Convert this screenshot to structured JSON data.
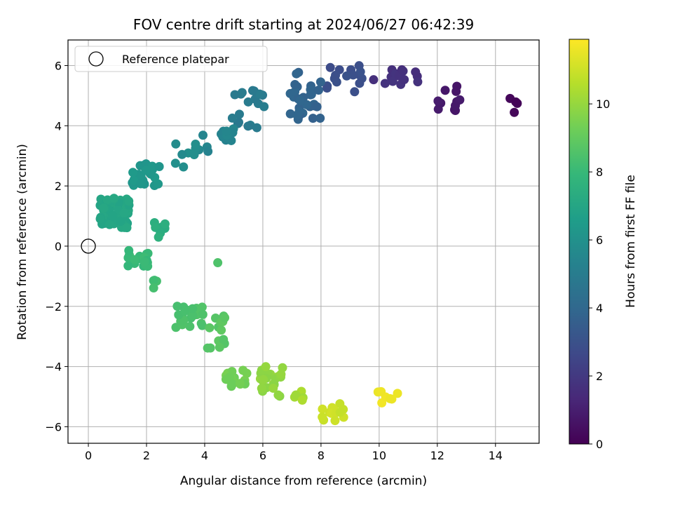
{
  "chart_data": {
    "type": "scatter",
    "title": "FOV centre drift starting at 2024/06/27 06:42:39",
    "xlabel": "Angular distance from reference (arcmin)",
    "ylabel": "Rotation from reference (arcmin)",
    "xlim": [
      -0.7,
      15.5
    ],
    "ylim": [
      -6.55,
      6.85
    ],
    "xticks": [
      0,
      2,
      4,
      6,
      8,
      10,
      12,
      14
    ],
    "yticks": [
      -6,
      -4,
      -2,
      0,
      2,
      4,
      6
    ],
    "grid": true,
    "legend_position": "top-left",
    "legend": [
      {
        "label": "Reference platepar",
        "marker": "open-circle"
      }
    ],
    "reference_point": {
      "x": 0,
      "y": 0
    },
    "colorbar": {
      "label": "Hours from first FF file",
      "range": [
        0,
        11.9
      ],
      "ticks": [
        0,
        2,
        4,
        6,
        8,
        10
      ],
      "colormap": "viridis"
    },
    "colormap_stops": [
      "#440154",
      "#482878",
      "#3e4989",
      "#31688e",
      "#26828e",
      "#1f9e89",
      "#35b779",
      "#6ece58",
      "#b5de2b",
      "#fde725"
    ],
    "point_color_by": "hours",
    "point_groups": [
      {
        "center": [
          14.6,
          4.6
        ],
        "hours": 0.15,
        "n": 4,
        "spread": [
          0.15,
          0.4
        ]
      },
      {
        "center": [
          12.3,
          4.9
        ],
        "hours": 0.8,
        "n": 12,
        "spread": [
          0.5,
          0.6
        ]
      },
      {
        "center": [
          10.6,
          5.7
        ],
        "hours": 1.7,
        "n": 14,
        "spread": [
          0.8,
          0.4
        ]
      },
      {
        "center": [
          8.9,
          5.5
        ],
        "hours": 2.9,
        "n": 16,
        "spread": [
          0.7,
          0.5
        ]
      },
      {
        "center": [
          7.4,
          5.0
        ],
        "hours": 3.8,
        "n": 30,
        "spread": [
          0.6,
          0.8
        ]
      },
      {
        "center": [
          5.5,
          4.6
        ],
        "hours": 4.9,
        "n": 18,
        "spread": [
          0.6,
          0.7
        ]
      },
      {
        "center": [
          4.4,
          3.6
        ],
        "hours": 5.4,
        "n": 14,
        "spread": [
          0.6,
          0.5
        ]
      },
      {
        "center": [
          3.3,
          3.1
        ],
        "hours": 5.8,
        "n": 8,
        "spread": [
          0.4,
          0.5
        ]
      },
      {
        "center": [
          2.0,
          2.4
        ],
        "hours": 6.3,
        "n": 24,
        "spread": [
          0.5,
          0.4
        ]
      },
      {
        "center": [
          0.9,
          1.1
        ],
        "hours": 7.0,
        "n": 60,
        "spread": [
          0.5,
          0.5
        ]
      },
      {
        "center": [
          2.4,
          0.5
        ],
        "hours": 7.4,
        "n": 7,
        "spread": [
          0.3,
          0.3
        ]
      },
      {
        "center": [
          1.7,
          -0.4
        ],
        "hours": 8.0,
        "n": 18,
        "spread": [
          0.4,
          0.3
        ]
      },
      {
        "center": [
          2.3,
          -1.2
        ],
        "hours": 8.2,
        "n": 4,
        "spread": [
          0.1,
          0.2
        ]
      },
      {
        "center": [
          3.5,
          -2.3
        ],
        "hours": 8.5,
        "n": 22,
        "spread": [
          0.5,
          0.4
        ]
      },
      {
        "center": [
          4.5,
          -2.8
        ],
        "hours": 8.8,
        "n": 14,
        "spread": [
          0.4,
          0.6
        ]
      },
      {
        "center": [
          4.45,
          -0.55
        ],
        "hours": 8.6,
        "n": 1,
        "spread": [
          0,
          0
        ]
      },
      {
        "center": [
          5.1,
          -4.4
        ],
        "hours": 9.3,
        "n": 18,
        "spread": [
          0.4,
          0.3
        ]
      },
      {
        "center": [
          6.3,
          -4.5
        ],
        "hours": 9.9,
        "n": 22,
        "spread": [
          0.4,
          0.5
        ]
      },
      {
        "center": [
          7.2,
          -5.0
        ],
        "hours": 10.3,
        "n": 6,
        "spread": [
          0.3,
          0.2
        ]
      },
      {
        "center": [
          8.4,
          -5.5
        ],
        "hours": 11.0,
        "n": 14,
        "spread": [
          0.4,
          0.3
        ]
      },
      {
        "center": [
          10.3,
          -5.1
        ],
        "hours": 11.6,
        "n": 7,
        "spread": [
          0.4,
          0.3
        ]
      }
    ]
  }
}
